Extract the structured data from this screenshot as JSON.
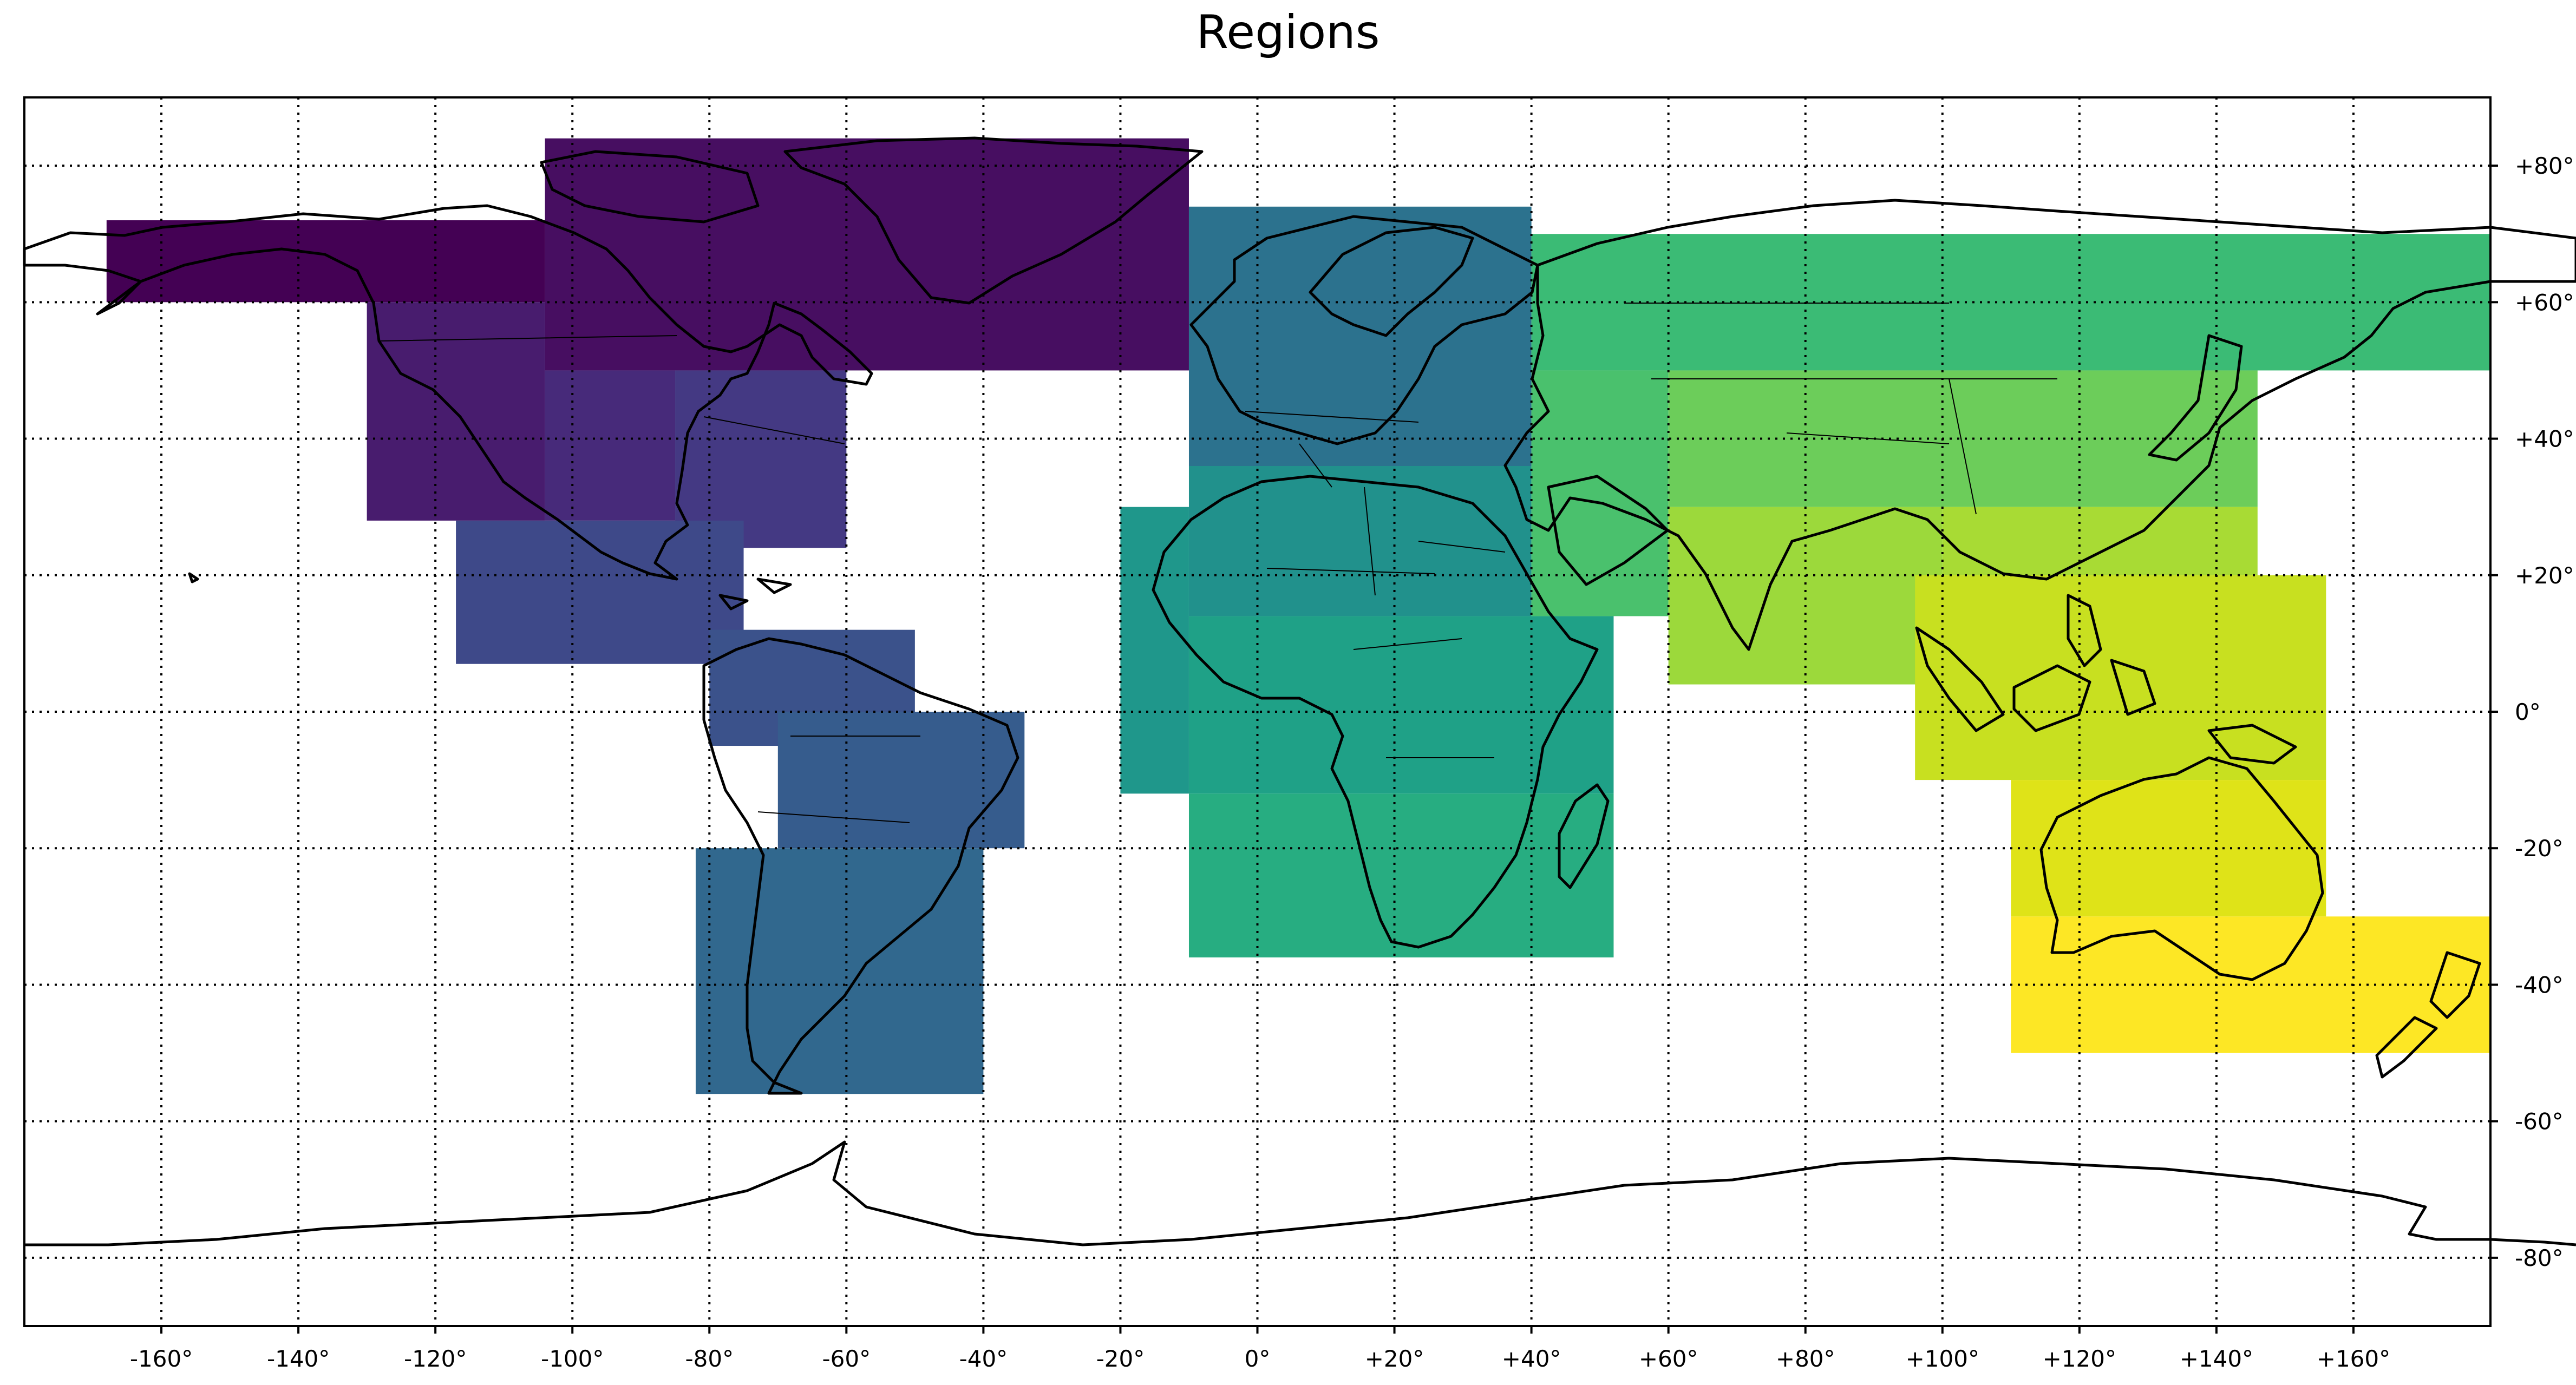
{
  "title": "Regions",
  "map": {
    "projection": "equirectangular",
    "lon_range": [
      -180,
      180
    ],
    "lat_range": [
      -90,
      90
    ],
    "gridlines": "dotted",
    "lon_ticks": [
      {
        "value": -160,
        "label": "-160°"
      },
      {
        "value": -140,
        "label": "-140°"
      },
      {
        "value": -120,
        "label": "-120°"
      },
      {
        "value": -100,
        "label": "-100°"
      },
      {
        "value": -80,
        "label": "-80°"
      },
      {
        "value": -60,
        "label": "-60°"
      },
      {
        "value": -40,
        "label": "-40°"
      },
      {
        "value": -20,
        "label": "-20°"
      },
      {
        "value": 0,
        "label": "0°"
      },
      {
        "value": 20,
        "label": "+20°"
      },
      {
        "value": 40,
        "label": "+40°"
      },
      {
        "value": 60,
        "label": "+60°"
      },
      {
        "value": 80,
        "label": "+80°"
      },
      {
        "value": 100,
        "label": "+100°"
      },
      {
        "value": 120,
        "label": "+120°"
      },
      {
        "value": 140,
        "label": "+140°"
      },
      {
        "value": 160,
        "label": "+160°"
      }
    ],
    "lat_ticks": [
      {
        "value": 80,
        "label": "+80°"
      },
      {
        "value": 60,
        "label": "+60°"
      },
      {
        "value": 40,
        "label": "+40°"
      },
      {
        "value": 20,
        "label": "+20°"
      },
      {
        "value": 0,
        "label": "0°"
      },
      {
        "value": -20,
        "label": "-20°"
      },
      {
        "value": -40,
        "label": "-40°"
      },
      {
        "value": -60,
        "label": "-60°"
      },
      {
        "value": -80,
        "label": "-80°"
      }
    ],
    "regions": [
      {
        "lon": [
          -168,
          -104
        ],
        "lat": [
          60,
          72
        ],
        "color": "#440154"
      },
      {
        "lon": [
          -104,
          -10
        ],
        "lat": [
          50,
          84
        ],
        "color": "#470e61"
      },
      {
        "lon": [
          -130,
          -104
        ],
        "lat": [
          28,
          60
        ],
        "color": "#481c6e"
      },
      {
        "lon": [
          -104,
          -85
        ],
        "lat": [
          28,
          50
        ],
        "color": "#472a7a"
      },
      {
        "lon": [
          -85,
          -60
        ],
        "lat": [
          24,
          50
        ],
        "color": "#443983"
      },
      {
        "lon": [
          -117,
          -75
        ],
        "lat": [
          7,
          28
        ],
        "color": "#3e4989"
      },
      {
        "lon": [
          -80,
          -50
        ],
        "lat": [
          -5,
          12
        ],
        "color": "#3b528b"
      },
      {
        "lon": [
          -70,
          -34
        ],
        "lat": [
          -20,
          0
        ],
        "color": "#365c8d"
      },
      {
        "lon": [
          -82,
          -40
        ],
        "lat": [
          -56,
          -20
        ],
        "color": "#31688e"
      },
      {
        "lon": [
          -10,
          40
        ],
        "lat": [
          36,
          74
        ],
        "color": "#2c728e"
      },
      {
        "lon": [
          -10,
          40
        ],
        "lat": [
          14,
          36
        ],
        "color": "#21918c"
      },
      {
        "lon": [
          -20,
          -10
        ],
        "lat": [
          -12,
          30
        ],
        "color": "#1f978b"
      },
      {
        "lon": [
          -10,
          52
        ],
        "lat": [
          -12,
          14
        ],
        "color": "#1fa187"
      },
      {
        "lon": [
          -10,
          52
        ],
        "lat": [
          -36,
          -12
        ],
        "color": "#27ad81"
      },
      {
        "lon": [
          40,
          180
        ],
        "lat": [
          50,
          70
        ],
        "color": "#3bbb75"
      },
      {
        "lon": [
          40,
          60
        ],
        "lat": [
          14,
          50
        ],
        "color": "#4ac16d"
      },
      {
        "lon": [
          60,
          146
        ],
        "lat": [
          30,
          50
        ],
        "color": "#6ccd5a"
      },
      {
        "lon": [
          60,
          100
        ],
        "lat": [
          4,
          30
        ],
        "color": "#9cd93b"
      },
      {
        "lon": [
          100,
          146
        ],
        "lat": [
          20,
          30
        ],
        "color": "#a8db34"
      },
      {
        "lon": [
          96,
          156
        ],
        "lat": [
          -10,
          20
        ],
        "color": "#c8e020"
      },
      {
        "lon": [
          110,
          156
        ],
        "lat": [
          -30,
          -10
        ],
        "color": "#dfe318"
      },
      {
        "lon": [
          110,
          180
        ],
        "lat": [
          -50,
          -30
        ],
        "color": "#fde725"
      }
    ]
  }
}
